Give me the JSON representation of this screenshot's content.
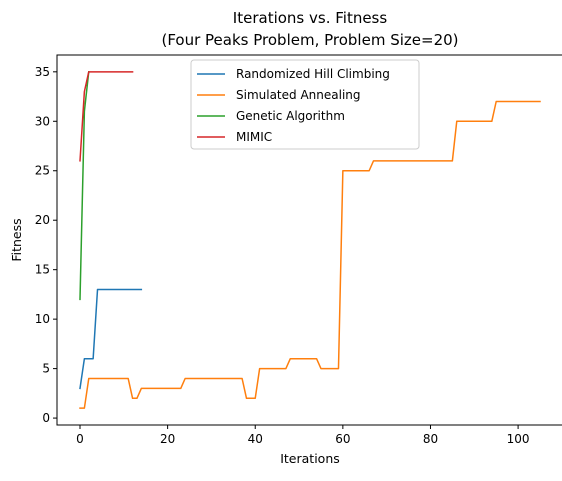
{
  "chart_data": {
    "type": "line",
    "title": "Iterations vs. Fitness",
    "subtitle": "(Four Peaks Problem, Problem Size=20)",
    "xlabel": "Iterations",
    "ylabel": "Fitness",
    "xlim": [
      -5.25,
      110.25
    ],
    "ylim": [
      -0.7,
      36.7
    ],
    "xticks": [
      0,
      20,
      40,
      60,
      80,
      100
    ],
    "yticks": [
      0,
      5,
      10,
      15,
      20,
      25,
      30,
      35
    ],
    "grid": false,
    "legend_position": "upper-center",
    "series": [
      {
        "name": "Randomized Hill Climbing",
        "color": "#1f77b4",
        "x": [
          0,
          1,
          2,
          3,
          4,
          5,
          6,
          7,
          8,
          9,
          10,
          11,
          12,
          13,
          14
        ],
        "y": [
          3,
          6,
          6,
          6,
          13,
          13,
          13,
          13,
          13,
          13,
          13,
          13,
          13,
          13,
          13
        ]
      },
      {
        "name": "Simulated Annealing",
        "color": "#ff7f0e",
        "x": [
          0,
          1,
          2,
          3,
          4,
          5,
          6,
          7,
          8,
          9,
          10,
          11,
          12,
          13,
          14,
          15,
          16,
          17,
          18,
          19,
          20,
          21,
          22,
          23,
          24,
          25,
          26,
          27,
          28,
          29,
          30,
          31,
          32,
          33,
          34,
          35,
          36,
          37,
          38,
          39,
          40,
          41,
          42,
          43,
          44,
          45,
          46,
          47,
          48,
          49,
          50,
          51,
          52,
          53,
          54,
          55,
          56,
          57,
          58,
          59,
          60,
          61,
          62,
          63,
          64,
          65,
          66,
          67,
          68,
          69,
          70,
          71,
          72,
          73,
          74,
          75,
          76,
          77,
          78,
          79,
          80,
          81,
          82,
          83,
          84,
          85,
          86,
          87,
          88,
          89,
          90,
          91,
          92,
          93,
          94,
          95,
          96,
          97,
          98,
          99,
          100,
          101,
          102,
          103,
          104,
          105
        ],
        "y": [
          1,
          1,
          4,
          4,
          4,
          4,
          4,
          4,
          4,
          4,
          4,
          4,
          2,
          2,
          3,
          3,
          3,
          3,
          3,
          3,
          3,
          3,
          3,
          3,
          4,
          4,
          4,
          4,
          4,
          4,
          4,
          4,
          4,
          4,
          4,
          4,
          4,
          4,
          2,
          2,
          2,
          5,
          5,
          5,
          5,
          5,
          5,
          5,
          6,
          6,
          6,
          6,
          6,
          6,
          6,
          5,
          5,
          5,
          5,
          5,
          25,
          25,
          25,
          25,
          25,
          25,
          25,
          26,
          26,
          26,
          26,
          26,
          26,
          26,
          26,
          26,
          26,
          26,
          26,
          26,
          26,
          26,
          26,
          26,
          26,
          26,
          30,
          30,
          30,
          30,
          30,
          30,
          30,
          30,
          30,
          32,
          32,
          32,
          32,
          32,
          32,
          32,
          32,
          32,
          32,
          32
        ]
      },
      {
        "name": "Genetic Algorithm",
        "color": "#2ca02c",
        "x": [
          0,
          1,
          2
        ],
        "y": [
          12,
          31,
          35
        ]
      },
      {
        "name": "MIMIC",
        "color": "#d62728",
        "x": [
          0,
          1,
          2,
          3,
          4,
          5,
          6,
          7,
          8,
          9,
          10,
          11,
          12
        ],
        "y": [
          26,
          33,
          35,
          35,
          35,
          35,
          35,
          35,
          35,
          35,
          35,
          35,
          35
        ]
      }
    ]
  }
}
